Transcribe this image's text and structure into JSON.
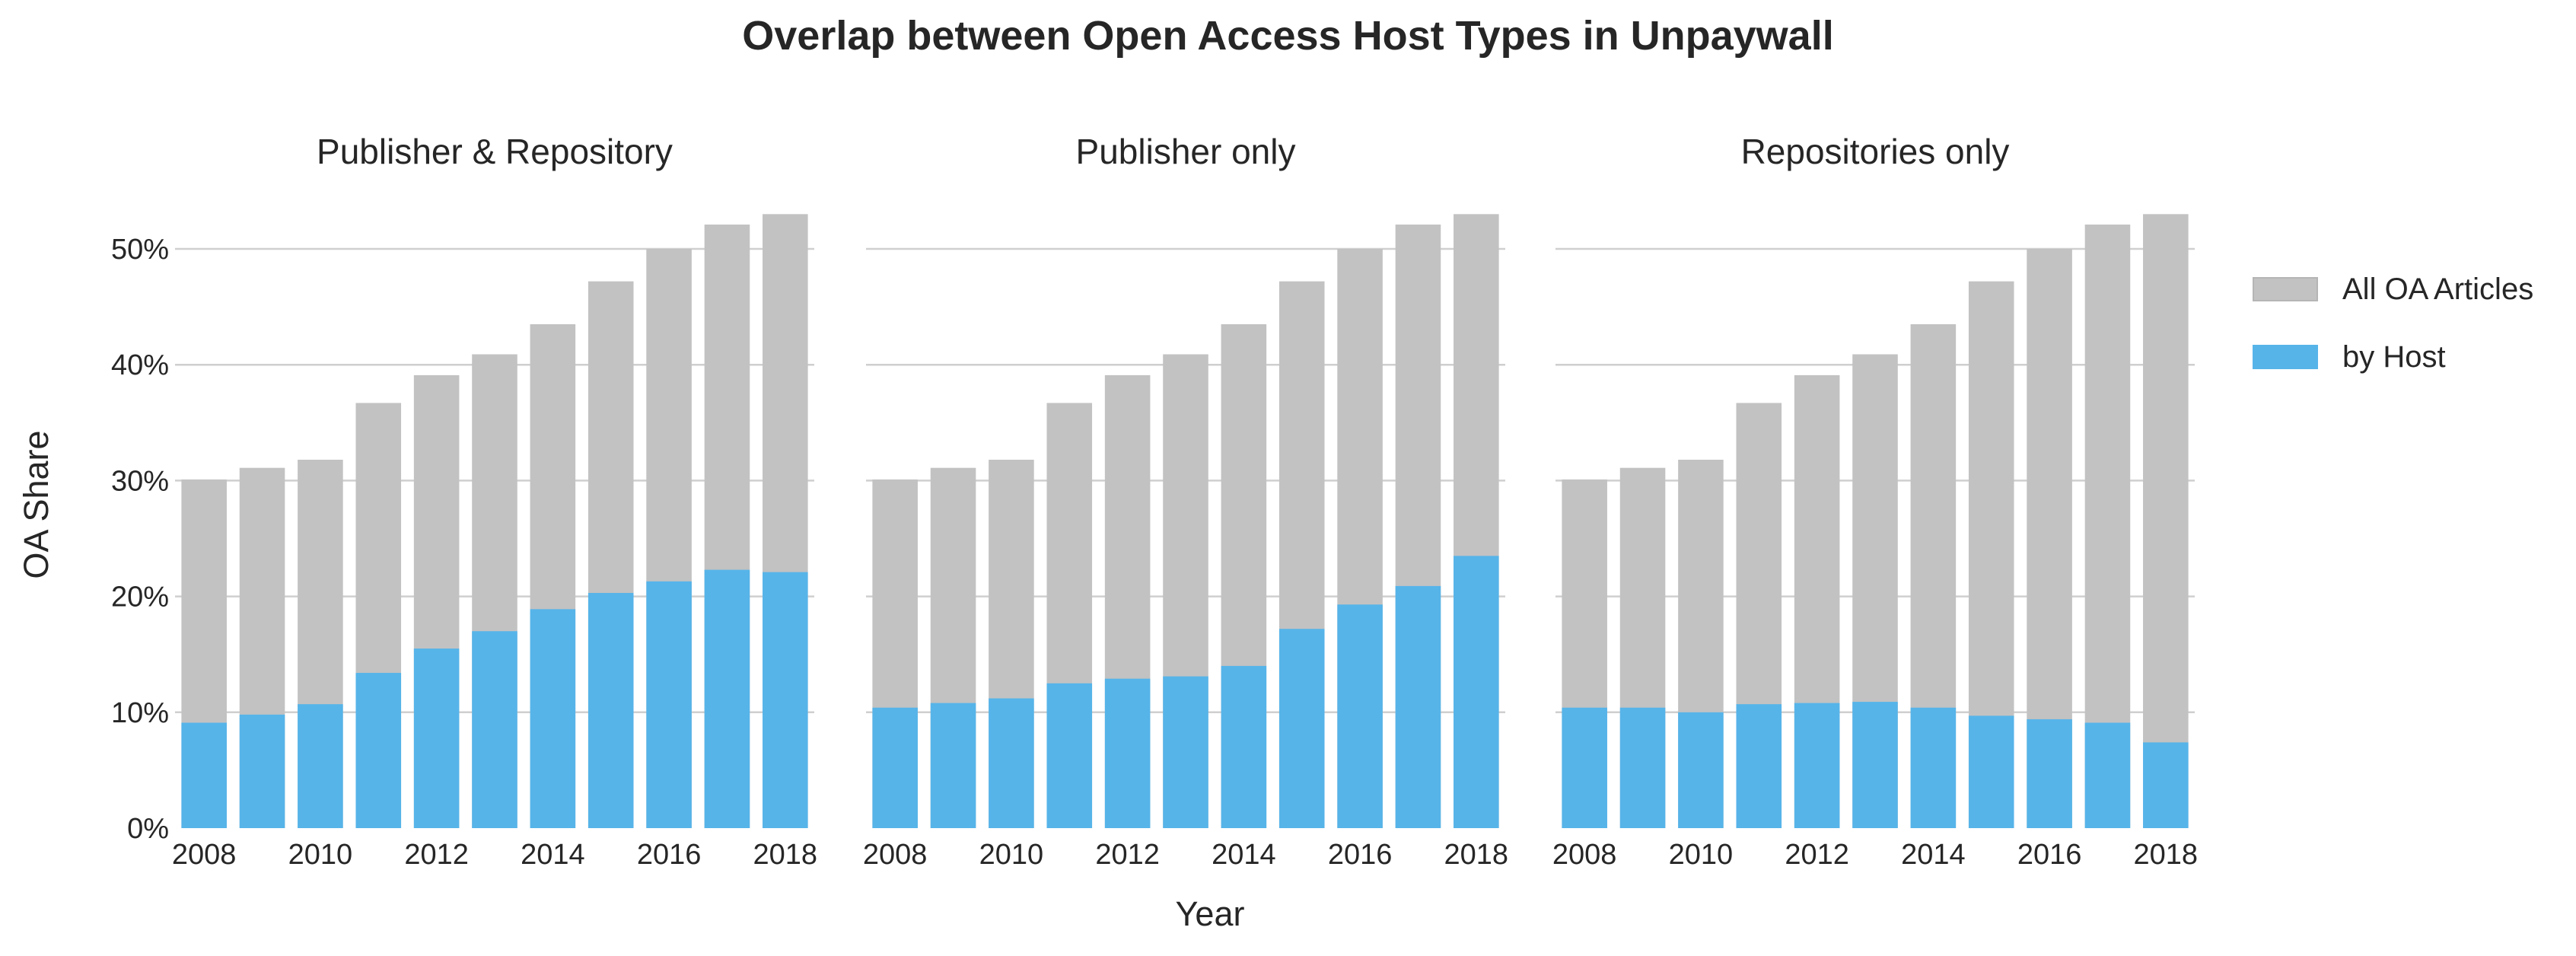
{
  "chart_data": {
    "type": "bar",
    "title": "Overlap between Open Access Host Types in Unpaywall",
    "xlabel": "Year",
    "ylabel": "OA Share",
    "ylim": [
      0,
      53
    ],
    "y_ticks": [
      "0%",
      "10%",
      "20%",
      "30%",
      "40%",
      "50%"
    ],
    "y_tick_values": [
      0,
      10,
      20,
      30,
      40,
      50
    ],
    "x_ticks": [
      "2008",
      "2010",
      "2012",
      "2014",
      "2016",
      "2018"
    ],
    "categories": [
      2008,
      2009,
      2010,
      2011,
      2012,
      2013,
      2014,
      2015,
      2016,
      2017,
      2018
    ],
    "grid": "horizontal",
    "legend_position": "right",
    "legend": [
      {
        "name": "All OA Articles",
        "color": "#c2c2c2"
      },
      {
        "name": "by Host",
        "color": "#56b4e9"
      }
    ],
    "panels": [
      {
        "title": "Publisher & Repository",
        "series": [
          {
            "name": "All OA Articles",
            "values": [
              30.1,
              31.1,
              31.8,
              36.7,
              39.1,
              40.9,
              43.5,
              47.2,
              50.0,
              52.1,
              53.0
            ]
          },
          {
            "name": "by Host",
            "values": [
              9.1,
              9.8,
              10.7,
              13.4,
              15.5,
              17.0,
              18.9,
              20.3,
              21.3,
              22.3,
              22.1
            ]
          }
        ]
      },
      {
        "title": "Publisher only",
        "series": [
          {
            "name": "All OA Articles",
            "values": [
              30.1,
              31.1,
              31.8,
              36.7,
              39.1,
              40.9,
              43.5,
              47.2,
              50.0,
              52.1,
              53.0
            ]
          },
          {
            "name": "by Host",
            "values": [
              10.4,
              10.8,
              11.2,
              12.5,
              12.9,
              13.1,
              14.0,
              17.2,
              19.3,
              20.9,
              23.5
            ]
          }
        ]
      },
      {
        "title": "Repositories only",
        "series": [
          {
            "name": "All OA Articles",
            "values": [
              30.1,
              31.1,
              31.8,
              36.7,
              39.1,
              40.9,
              43.5,
              47.2,
              50.0,
              52.1,
              53.0
            ]
          },
          {
            "name": "by Host",
            "values": [
              10.4,
              10.4,
              10.0,
              10.7,
              10.8,
              10.9,
              10.4,
              9.7,
              9.4,
              9.1,
              7.4
            ]
          }
        ]
      }
    ]
  }
}
